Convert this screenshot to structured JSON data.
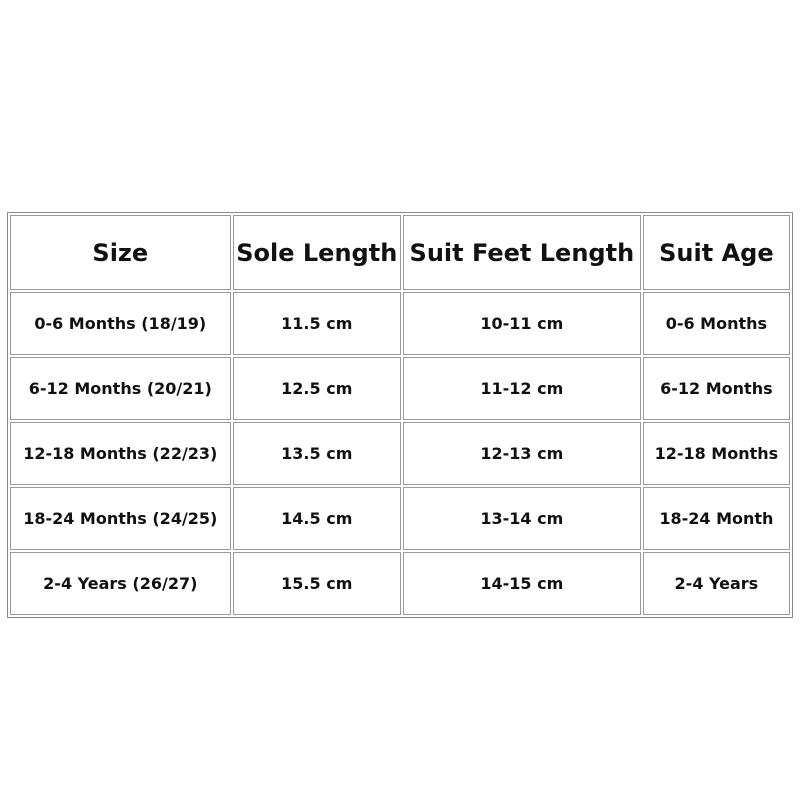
{
  "table": {
    "headers": [
      "Size",
      "Sole Length",
      "Suit Feet Length",
      "Suit Age"
    ],
    "rows": [
      [
        "0-6 Months (18/19)",
        "11.5 cm",
        "10-11 cm",
        "0-6 Months"
      ],
      [
        "6-12 Months (20/21)",
        "12.5 cm",
        "11-12 cm",
        "6-12 Months"
      ],
      [
        "12-18 Months (22/23)",
        "13.5 cm",
        "12-13 cm",
        "12-18 Months"
      ],
      [
        "18-24 Months (24/25)",
        "14.5 cm",
        "13-14 cm",
        "18-24 Month"
      ],
      [
        "2-4 Years (26/27)",
        "15.5 cm",
        "14-15 cm",
        "2-4 Years"
      ]
    ]
  }
}
